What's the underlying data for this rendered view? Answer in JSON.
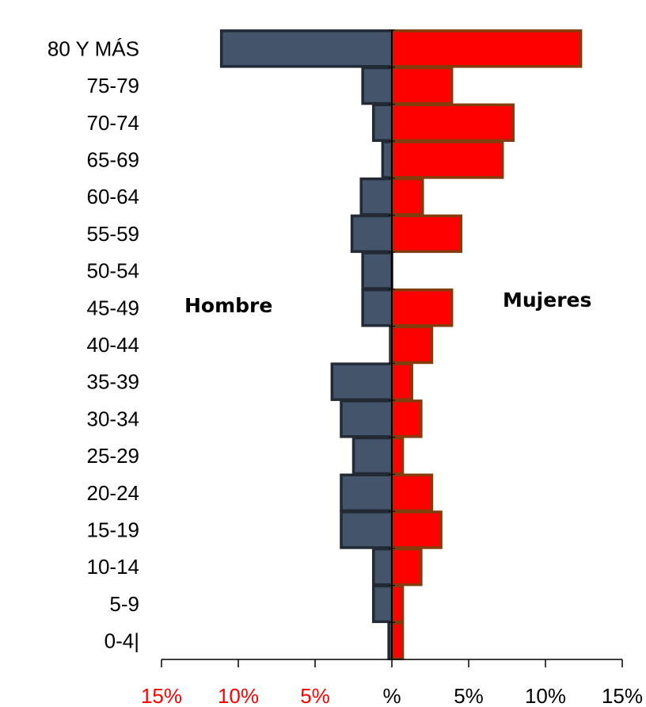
{
  "chart_data": {
    "type": "bar",
    "orientation": "horizontal-population-pyramid",
    "categories": [
      "80 Y MÁS",
      "75-79",
      "70-74",
      "65-69",
      "60-64",
      "55-59",
      "50-54",
      "45-49",
      "40-44",
      "35-39",
      "30-34",
      "25-29",
      "20-24",
      "15-19",
      "10-14",
      "5-9",
      "0-4|"
    ],
    "series": [
      {
        "name": "Hombre",
        "color": "#44546A",
        "edge_color": "#222A35",
        "values": [
          11.1,
          1.9,
          1.2,
          0.6,
          2.0,
          2.6,
          1.9,
          1.9,
          0.1,
          3.9,
          3.3,
          2.5,
          3.3,
          3.3,
          1.2,
          1.2,
          0.2
        ]
      },
      {
        "name": "Mujeres",
        "color": "#FF0000",
        "edge_color": "#843C0C",
        "values": [
          12.3,
          3.9,
          7.9,
          7.2,
          2.0,
          4.5,
          0.0,
          3.9,
          2.6,
          1.3,
          1.9,
          0.7,
          2.6,
          3.2,
          1.9,
          0.7,
          0.7
        ]
      }
    ],
    "x_ticks": [
      {
        "value": -15,
        "label": "15%",
        "color": "#FF0000"
      },
      {
        "value": -10,
        "label": "10%",
        "color": "#FF0000"
      },
      {
        "value": -5,
        "label": "5%",
        "color": "#FF0000"
      },
      {
        "value": 0,
        "label": "%",
        "color": "#000000"
      },
      {
        "value": 5,
        "label": "5%",
        "color": "#000000"
      },
      {
        "value": 10,
        "label": "10%",
        "color": "#000000"
      },
      {
        "value": 15,
        "label": "15%",
        "color": "#000000"
      }
    ],
    "xlim": [
      -15,
      15
    ],
    "title": "",
    "xlabel": "",
    "ylabel": "",
    "grid": false,
    "annotations": {
      "left": "Hombre",
      "right": "Mujeres"
    }
  }
}
